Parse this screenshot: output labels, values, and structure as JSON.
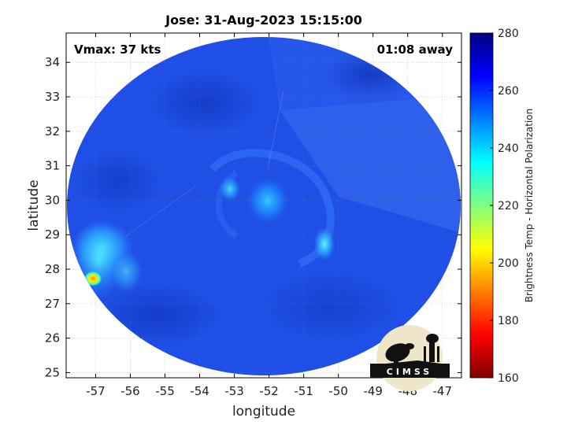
{
  "title": "Jose: 31-Aug-2023 15:15:00",
  "vmax_label": "Vmax: 37 kts",
  "time_away_label": "01:08 away",
  "xlabel": "longitude",
  "ylabel": "latitude",
  "colorbar_title": "Brightness Temp - Horizontal Polarization",
  "logo_text": "CIMSS",
  "colors": {
    "scan_background": "#1f4fe6",
    "frame": "#000000"
  },
  "chart_data": {
    "type": "heatmap",
    "x_ticks": [
      -57,
      -56,
      -55,
      -54,
      -53,
      -52,
      -51,
      -50,
      -49,
      -48,
      -47
    ],
    "y_ticks": [
      25,
      26,
      27,
      28,
      29,
      30,
      31,
      32,
      33,
      34
    ],
    "xlim": [
      -57.85,
      -46.45
    ],
    "ylim": [
      24.85,
      34.85
    ],
    "colorbar": {
      "ticks": [
        160,
        180,
        200,
        220,
        240,
        260,
        280
      ],
      "range": [
        160,
        280
      ],
      "colormap": "jet"
    },
    "scan_center": {
      "lon": -52.1,
      "lat": 29.9
    },
    "features": [
      {
        "name": "storm center",
        "lon": -52.2,
        "lat": 29.9,
        "brightness_temp": 238
      },
      {
        "name": "eastern rainband",
        "lon": -50.3,
        "lat": 28.4,
        "brightness_temp": 235
      },
      {
        "name": "western convection",
        "lon": -56.6,
        "lat": 28.3,
        "brightness_temp": 228
      },
      {
        "name": "coldest cell",
        "lon": -57.0,
        "lat": 27.7,
        "brightness_temp": 195
      }
    ]
  }
}
